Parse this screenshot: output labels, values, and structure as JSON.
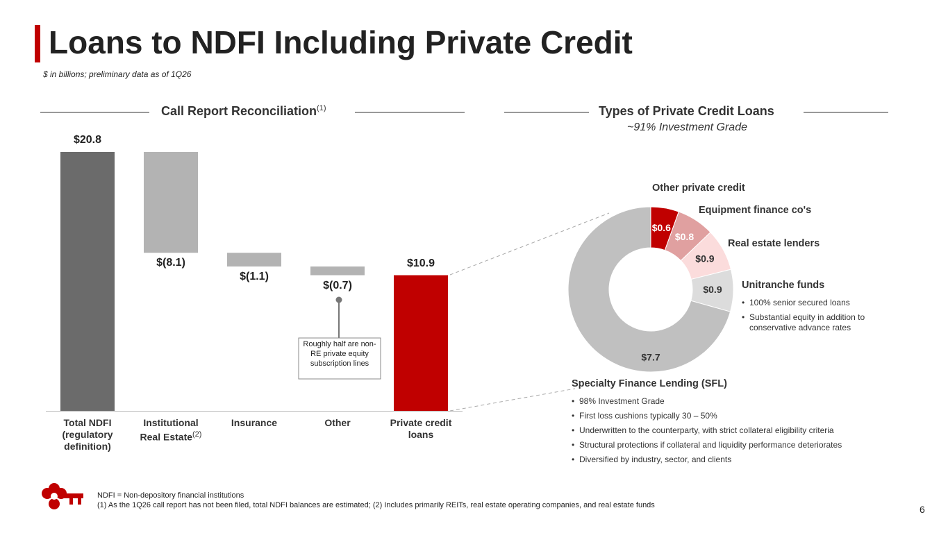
{
  "header": {
    "title": "Loans to NDFI Including Private Credit",
    "subtitle": "$ in billions; preliminary data as of 1Q26"
  },
  "chart_data": [
    {
      "type": "waterfall",
      "title": "Call Report Reconciliation",
      "title_note": "(1)",
      "categories": [
        "Total NDFI (regulatory definition)",
        "Institutional Real Estate",
        "Insurance",
        "Other",
        "Private credit loans"
      ],
      "category_notes": {
        "1": "(2)"
      },
      "values": [
        20.8,
        -8.1,
        -1.1,
        -0.7,
        10.9
      ],
      "value_labels": [
        "$20.8",
        "$(8.1)",
        "$(1.1)",
        "$(0.7)",
        "$10.9"
      ],
      "measures": [
        "total",
        "relative",
        "relative",
        "relative",
        "total"
      ],
      "colors": [
        "#6b6b6b",
        "#b3b3b3",
        "#b3b3b3",
        "#b3b3b3",
        "#c00000"
      ],
      "annotation": "Roughly half are non-RE private equity subscription lines"
    },
    {
      "type": "donut",
      "title": "Types of Private Credit Loans",
      "subtitle": "~91% Investment Grade",
      "categories": [
        "Other private credit",
        "Equipment finance co's",
        "Real estate lenders",
        "Unitranche funds",
        "Specialty Finance Lending (SFL)"
      ],
      "values": [
        0.6,
        0.8,
        0.9,
        0.9,
        7.7
      ],
      "value_labels": [
        "$0.6",
        "$0.8",
        "$0.9",
        "$0.9",
        "$7.7"
      ],
      "colors": [
        "#c00000",
        "#e0a0a0",
        "#fbdcdc",
        "#dcdcdc",
        "#c0c0c0"
      ],
      "details": {
        "3": [
          "100% senior secured loans",
          "Substantial equity in addition to conservative advance rates"
        ],
        "4": [
          "98% Investment Grade",
          "First loss cushions typically 30 – 50%",
          "Underwritten to the counterparty, with strict collateral eligibility criteria",
          "Structural protections if collateral and liquidity performance deteriorates",
          "Diversified by industry, sector, and clients"
        ]
      }
    }
  ],
  "footer": {
    "notes": [
      "NDFI = Non-depository financial institutions",
      "(1) As the 1Q26 call report has not been filed, total NDFI balances are estimated; (2) Includes primarily REITs, real estate operating companies, and real estate funds"
    ],
    "page": 6
  }
}
